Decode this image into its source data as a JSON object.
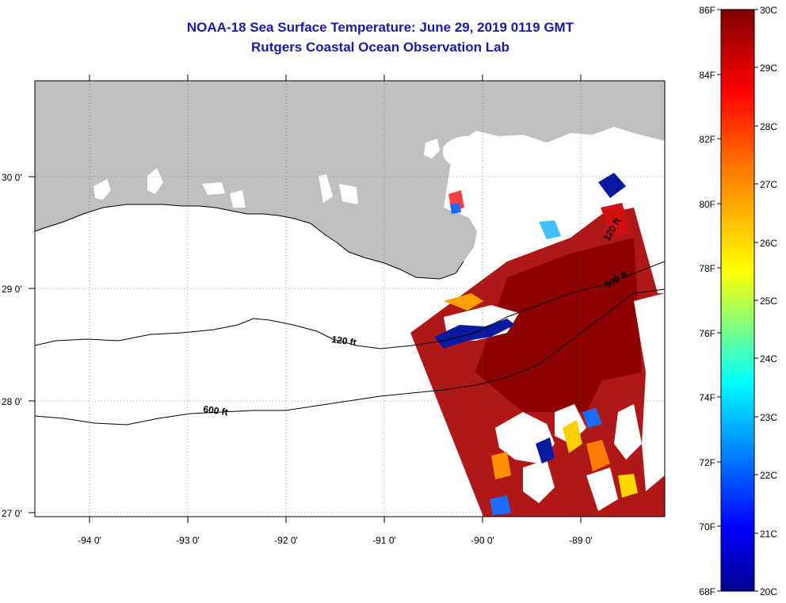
{
  "header": {
    "title": "NOAA-18 Sea Surface Temperature:  June 29, 2019 0119 GMT",
    "subtitle": "Rutgers Coastal Ocean Observation Lab"
  },
  "map": {
    "lon_labels": [
      "-94 0'",
      "-93 0'",
      "-92 0'",
      "-91 0'",
      "-90 0'",
      "-89 0'"
    ],
    "lat_labels": [
      "30 0'",
      "29 0'",
      "28 0'",
      "27 0'"
    ],
    "contour_labels": [
      "120 ft",
      "600 ft",
      "120 ft",
      "600 ft"
    ],
    "colors": {
      "land": "#bfbfbf",
      "warm": "#b01010",
      "hot": "#8c0000",
      "cold": "#0a1aa0"
    }
  },
  "colorbar": {
    "f_labels": [
      "86F",
      "84F",
      "82F",
      "80F",
      "78F",
      "76F",
      "74F",
      "72F",
      "70F",
      "68F"
    ],
    "c_labels": [
      "30C",
      "29C",
      "28C",
      "27C",
      "26C",
      "25C",
      "24C",
      "23C",
      "22C",
      "21C",
      "20C"
    ]
  }
}
